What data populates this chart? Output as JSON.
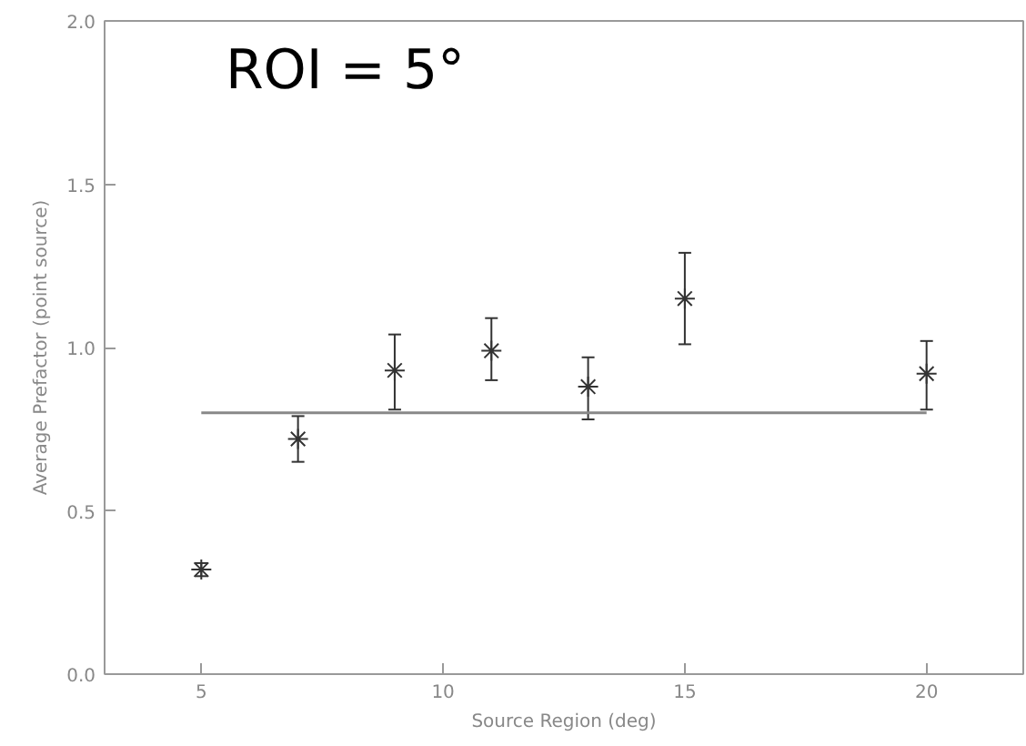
{
  "chart_data": {
    "type": "scatter",
    "xlabel": "Source Region (deg)",
    "ylabel": "Average Prefactor (point source)",
    "x": [
      5,
      7,
      9,
      11,
      13,
      15,
      20
    ],
    "series": [
      {
        "color": "#333333",
        "marker": "cross",
        "values": [
          0.32,
          0.72,
          0.93,
          0.99,
          0.88,
          1.15,
          0.92
        ],
        "errors": [
          [
            0.3,
            0.34
          ],
          [
            0.65,
            0.79
          ],
          [
            0.81,
            1.04
          ],
          [
            0.9,
            1.09
          ],
          [
            0.78,
            0.97
          ],
          [
            1.01,
            1.29
          ],
          [
            0.81,
            1.02
          ]
        ]
      },
      {
        "type": "line",
        "color": "#888888",
        "x": [
          5,
          20
        ],
        "values": [
          0.8,
          0.8
        ],
        "marker": "none"
      }
    ],
    "xlim": [
      3,
      22
    ],
    "xticks": [
      5,
      10,
      15,
      20
    ],
    "ylim": [
      0,
      2
    ],
    "yticks": [
      {
        "value": 0,
        "label": "0.0"
      },
      {
        "value": 0.5,
        "label": "0.5"
      },
      {
        "value": 1,
        "label": "1.0"
      },
      {
        "value": 1.5,
        "label": "1.5"
      },
      {
        "value": 2,
        "label": "2.0"
      }
    ],
    "grid": false,
    "annotations": [
      "ROI = 5°"
    ]
  }
}
